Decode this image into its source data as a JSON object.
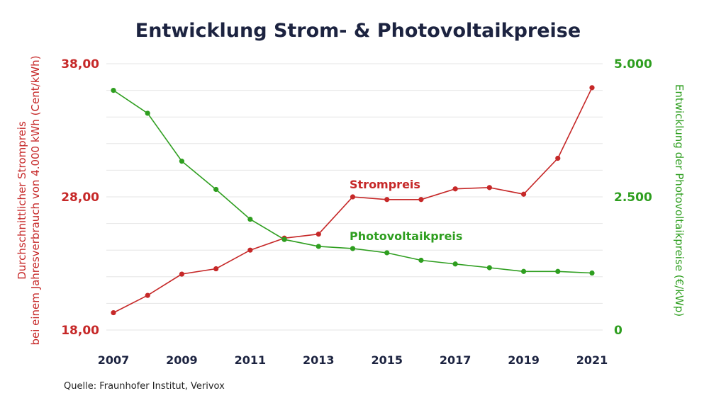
{
  "chart_data": {
    "type": "line",
    "title": "Entwicklung Strom- & Photovoltaikpreise",
    "source": "Quelle: Fraunhofer Institut, Verivox",
    "x": [
      2007,
      2008,
      2009,
      2010,
      2011,
      2012,
      2013,
      2014,
      2015,
      2016,
      2017,
      2018,
      2019,
      2020,
      2021
    ],
    "x_tick_labels": [
      "2007",
      "2009",
      "2011",
      "2013",
      "2015",
      "2017",
      "2019",
      "2021"
    ],
    "y_left": {
      "label_line1": "Durchschnittlicher Strompreis",
      "label_line2": "bei einem Jahresverbrauch von 4.000 kWh (Cent/kWh)",
      "range": [
        18,
        38
      ],
      "tick_labels": [
        "38,00",
        "28,00",
        "18,00"
      ],
      "tick_values": [
        38,
        28,
        18
      ],
      "color": "#c62828"
    },
    "y_right": {
      "label": "Entwicklung der Photovoltaikpreise (€/kWp)",
      "range": [
        0,
        5000
      ],
      "tick_labels": [
        "5.000",
        "2.500",
        "0"
      ],
      "tick_values": [
        5000,
        2500,
        0
      ],
      "color": "#2e9e1f"
    },
    "gridlines": 10,
    "grid": true,
    "series": [
      {
        "name": "Strompreis",
        "axis": "left",
        "color": "#c62828",
        "values": [
          19.3,
          20.6,
          22.2,
          22.6,
          24.0,
          24.9,
          25.2,
          28.0,
          27.8,
          27.8,
          28.6,
          28.7,
          28.2,
          30.9,
          36.2
        ]
      },
      {
        "name": "Photovoltaikpreis",
        "axis": "right",
        "color": "#2e9e1f",
        "values": [
          4500,
          4070,
          3170,
          2640,
          2080,
          1700,
          1570,
          1530,
          1450,
          1310,
          1240,
          1170,
          1100,
          1100,
          1070
        ]
      }
    ]
  }
}
